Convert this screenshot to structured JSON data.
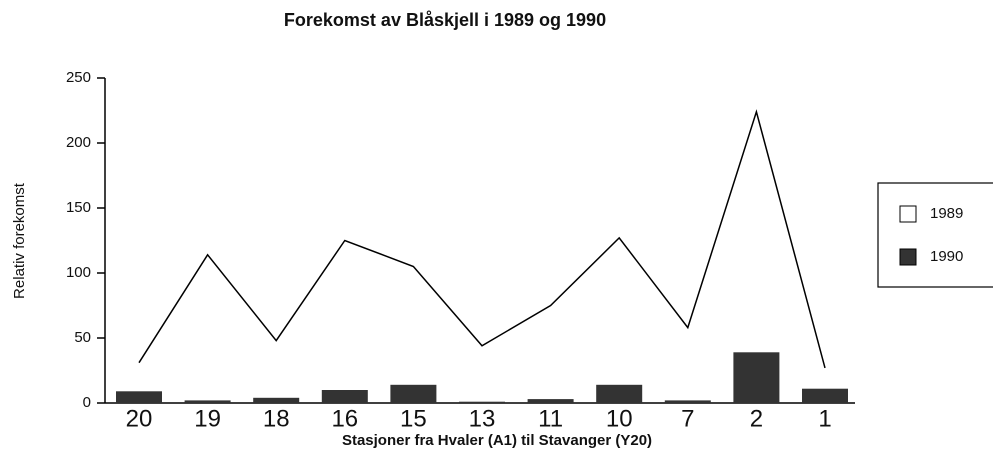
{
  "chart_data": {
    "type": "combo",
    "title": "Forekomst av Blåskjell i 1989 og 1990",
    "x_label": "Stasjoner fra  Hvaler (A1) til Stavanger (Y20)",
    "y_label": "Relativ forekomst",
    "categories": [
      "20",
      "19",
      "18",
      "16",
      "15",
      "13",
      "11",
      "10",
      "7",
      "2",
      "1"
    ],
    "series": [
      {
        "name": "1989",
        "type": "line",
        "color": "#000000",
        "values": [
          31,
          114,
          48,
          125,
          105,
          44,
          75,
          127,
          58,
          224,
          27
        ]
      },
      {
        "name": "1990",
        "type": "bar",
        "color": "#333333",
        "values": [
          9,
          2,
          4,
          10,
          14,
          1,
          3,
          14,
          2,
          39,
          11
        ]
      }
    ],
    "ylim": [
      0,
      250
    ],
    "yticks": [
      0,
      50,
      100,
      150,
      200,
      250
    ],
    "legend": "right"
  }
}
